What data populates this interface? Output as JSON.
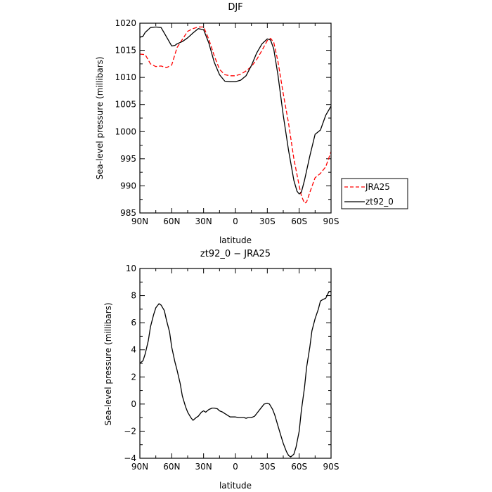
{
  "chart_data": [
    {
      "type": "line",
      "title": "DJF",
      "xlabel": "latitude",
      "ylabel": "Sea-level pressure (millibars)",
      "xlim": [
        90,
        -90
      ],
      "ylim": [
        985,
        1020
      ],
      "x_ticks": [
        90,
        60,
        30,
        0,
        -30,
        -60,
        -90
      ],
      "x_tick_labels": [
        "90N",
        "60N",
        "30N",
        "0",
        "30S",
        "60S",
        "90S"
      ],
      "y_ticks": [
        985,
        990,
        995,
        1000,
        1005,
        1010,
        1015,
        1020
      ],
      "y_tick_labels": [
        "985",
        "990",
        "995",
        "1000",
        "1005",
        "1010",
        "1015",
        "1020"
      ],
      "legend": "right",
      "series": [
        {
          "name": "JRA25",
          "color": "#ff0000",
          "dash": "dashed",
          "x": [
            90,
            85,
            80,
            75,
            70,
            65,
            60,
            55,
            50,
            45,
            40,
            35,
            30,
            25,
            20,
            15,
            10,
            5,
            0,
            -5,
            -10,
            -15,
            -20,
            -25,
            -30,
            -33,
            -36,
            -40,
            -45,
            -50,
            -55,
            -60,
            -62,
            -65,
            -67,
            -70,
            -75,
            -80,
            -85,
            -90
          ],
          "values": [
            1014.3,
            1014.2,
            1012.5,
            1012.0,
            1012.1,
            1011.8,
            1012.3,
            1015.5,
            1017.0,
            1018.5,
            1019.0,
            1019.3,
            1019.3,
            1017.0,
            1014.0,
            1011.5,
            1010.5,
            1010.3,
            1010.3,
            1010.6,
            1011.2,
            1012.0,
            1013.3,
            1015.0,
            1016.8,
            1017.2,
            1016.5,
            1013.0,
            1007.0,
            1001.5,
            995.0,
            990.0,
            988.2,
            986.8,
            987.0,
            988.8,
            991.5,
            992.3,
            993.5,
            996.3
          ]
        },
        {
          "name": "zt92_0",
          "color": "#000000",
          "dash": "solid",
          "x": [
            90,
            87,
            85,
            80,
            75,
            70,
            65,
            60,
            57,
            55,
            50,
            45,
            40,
            35,
            30,
            25,
            20,
            15,
            10,
            5,
            0,
            -5,
            -10,
            -15,
            -20,
            -25,
            -30,
            -33,
            -36,
            -40,
            -45,
            -50,
            -55,
            -58,
            -60,
            -62,
            -65,
            -70,
            -75,
            -80,
            -85,
            -90
          ],
          "values": [
            1017.4,
            1017.6,
            1018.3,
            1019.2,
            1019.3,
            1019.2,
            1017.5,
            1015.8,
            1015.9,
            1016.2,
            1016.6,
            1017.3,
            1018.2,
            1019.0,
            1018.8,
            1016.3,
            1012.8,
            1010.5,
            1009.3,
            1009.2,
            1009.2,
            1009.5,
            1010.3,
            1012.2,
            1014.5,
            1016.2,
            1017.1,
            1016.9,
            1015.3,
            1010.5,
            1003.0,
            996.5,
            991.0,
            989.0,
            988.5,
            988.8,
            991.0,
            995.5,
            999.5,
            1000.3,
            1003.0,
            1004.7
          ]
        }
      ]
    },
    {
      "type": "line",
      "title": "zt92_0 − JRA25",
      "xlabel": "latitude",
      "ylabel": "Sea-level pressure (millibars)",
      "xlim": [
        90,
        -90
      ],
      "ylim": [
        -4,
        10
      ],
      "x_ticks": [
        90,
        60,
        30,
        0,
        -30,
        -60,
        -90
      ],
      "x_tick_labels": [
        "90N",
        "60N",
        "30N",
        "0",
        "30S",
        "60S",
        "90S"
      ],
      "y_ticks": [
        -4,
        -2,
        0,
        2,
        4,
        6,
        8,
        10
      ],
      "y_tick_labels": [
        "−4",
        "−2",
        "0",
        "2",
        "4",
        "6",
        "8",
        "10"
      ],
      "series": [
        {
          "color": "#000000",
          "dash": "solid",
          "x": [
            90,
            87,
            85,
            82,
            80,
            77,
            75,
            72,
            70,
            67,
            65,
            62,
            60,
            57,
            55,
            52,
            50,
            47,
            45,
            42,
            40,
            37,
            35,
            32,
            30,
            28,
            25,
            22,
            20,
            17,
            15,
            12,
            10,
            8,
            5,
            2,
            0,
            -3,
            -5,
            -8,
            -10,
            -12,
            -15,
            -18,
            -20,
            -22,
            -25,
            -27,
            -30,
            -32,
            -35,
            -37,
            -40,
            -43,
            -45,
            -48,
            -50,
            -52,
            -55,
            -57,
            -60,
            -62,
            -65,
            -67,
            -70,
            -72,
            -75,
            -78,
            -80,
            -82,
            -85,
            -88,
            -90
          ],
          "values": [
            3.0,
            3.2,
            3.7,
            4.7,
            5.7,
            6.6,
            7.1,
            7.4,
            7.3,
            6.9,
            6.2,
            5.3,
            4.2,
            3.1,
            2.5,
            1.5,
            0.6,
            -0.2,
            -0.6,
            -1.0,
            -1.2,
            -1.0,
            -0.9,
            -0.6,
            -0.5,
            -0.6,
            -0.4,
            -0.3,
            -0.3,
            -0.35,
            -0.5,
            -0.6,
            -0.7,
            -0.8,
            -0.95,
            -0.95,
            -0.95,
            -1.0,
            -1.0,
            -1.0,
            -1.05,
            -1.0,
            -1.0,
            -0.9,
            -0.7,
            -0.5,
            -0.2,
            0.0,
            0.05,
            0.0,
            -0.4,
            -0.8,
            -1.6,
            -2.4,
            -2.9,
            -3.5,
            -3.8,
            -3.9,
            -3.7,
            -3.2,
            -2.0,
            -0.5,
            1.2,
            2.7,
            4.2,
            5.4,
            6.3,
            7.0,
            7.6,
            7.7,
            7.8,
            8.3,
            8.3
          ]
        }
      ]
    }
  ]
}
